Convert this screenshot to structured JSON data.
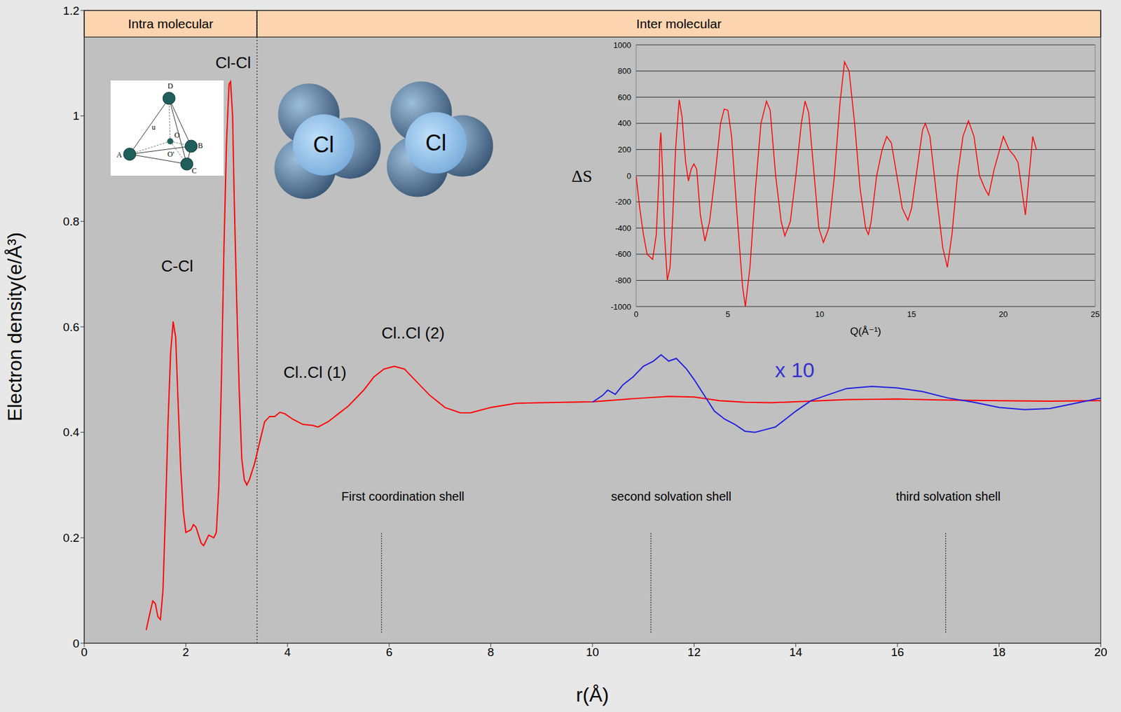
{
  "chart_data": [
    {
      "type": "line",
      "x_label": "r(Å)",
      "y_label": "Electron density(e/Å³)",
      "xlim": [
        0,
        20
      ],
      "ylim": [
        0,
        1.2
      ],
      "xticks": [
        0,
        2,
        4,
        6,
        8,
        10,
        12,
        14,
        16,
        18,
        20
      ],
      "yticks": [
        0,
        0.2,
        0.4,
        0.6,
        0.8,
        1,
        1.2
      ],
      "grid": false,
      "series": [
        {
          "color": "#ff0000",
          "x": [
            1.22,
            1.3,
            1.35,
            1.4,
            1.45,
            1.5,
            1.55,
            1.6,
            1.65,
            1.7,
            1.75,
            1.8,
            1.85,
            1.9,
            1.95,
            2.0,
            2.1,
            2.15,
            2.2,
            2.3,
            2.35,
            2.45,
            2.55,
            2.6,
            2.65,
            2.7,
            2.75,
            2.8,
            2.85,
            2.88,
            2.92,
            2.95,
            3.0,
            3.05,
            3.1,
            3.15,
            3.2,
            3.25,
            3.35,
            3.45,
            3.55,
            3.65,
            3.75,
            3.85,
            3.95,
            4.1,
            4.3,
            4.5,
            4.6,
            4.8,
            5.0,
            5.2,
            5.5,
            5.7,
            5.9,
            6.1,
            6.3,
            6.5,
            6.8,
            7.1,
            7.4,
            7.6,
            8.0,
            8.5,
            9.0,
            10.0,
            11.0,
            11.5,
            12.0,
            12.5,
            13.0,
            13.5,
            14.0,
            15.0,
            16.0,
            17.0,
            18.0,
            19.0,
            20.0
          ],
          "values": [
            0.025,
            0.06,
            0.08,
            0.075,
            0.05,
            0.045,
            0.1,
            0.25,
            0.42,
            0.55,
            0.61,
            0.58,
            0.45,
            0.33,
            0.25,
            0.21,
            0.215,
            0.225,
            0.22,
            0.19,
            0.185,
            0.205,
            0.2,
            0.21,
            0.3,
            0.5,
            0.75,
            0.95,
            1.06,
            1.065,
            1.0,
            0.85,
            0.65,
            0.48,
            0.35,
            0.31,
            0.3,
            0.31,
            0.34,
            0.38,
            0.42,
            0.43,
            0.43,
            0.438,
            0.435,
            0.425,
            0.415,
            0.413,
            0.41,
            0.42,
            0.435,
            0.45,
            0.48,
            0.505,
            0.52,
            0.525,
            0.52,
            0.5,
            0.47,
            0.447,
            0.437,
            0.437,
            0.447,
            0.455,
            0.456,
            0.458,
            0.465,
            0.468,
            0.467,
            0.46,
            0.457,
            0.456,
            0.458,
            0.462,
            0.463,
            0.461,
            0.46,
            0.459,
            0.46
          ]
        },
        {
          "color": "#1f1fe0",
          "x": [
            10.0,
            10.2,
            10.3,
            10.45,
            10.6,
            10.8,
            11.0,
            11.2,
            11.35,
            11.5,
            11.65,
            11.85,
            12.0,
            12.2,
            12.4,
            12.6,
            12.8,
            13.0,
            13.2,
            13.4,
            13.6,
            13.8,
            14.0,
            14.3,
            14.6,
            15.0,
            15.5,
            16.0,
            16.5,
            17.0,
            17.5,
            18.0,
            18.5,
            19.0,
            19.5,
            20.0
          ],
          "values": [
            0.457,
            0.47,
            0.48,
            0.472,
            0.49,
            0.505,
            0.525,
            0.535,
            0.547,
            0.535,
            0.54,
            0.52,
            0.5,
            0.47,
            0.44,
            0.425,
            0.415,
            0.402,
            0.4,
            0.405,
            0.41,
            0.425,
            0.44,
            0.46,
            0.47,
            0.483,
            0.487,
            0.484,
            0.477,
            0.465,
            0.457,
            0.447,
            0.443,
            0.445,
            0.455,
            0.465
          ]
        }
      ],
      "regions": [
        {
          "text": "Intra molecular",
          "x": [
            0,
            3.4
          ],
          "color": "#fcd5b0"
        },
        {
          "text": "Inter molecular",
          "x": [
            3.4,
            20
          ],
          "color": "#fcd5b0"
        }
      ],
      "annotations": [
        {
          "text": "Cl-Cl",
          "x": 2.93,
          "y": 1.101
        },
        {
          "text": "C-Cl",
          "x": 1.83,
          "y": 0.715
        },
        {
          "text": "Cl..Cl (1)",
          "x": 4.54,
          "y": 0.514
        },
        {
          "text": "Cl..Cl (2)",
          "x": 6.47,
          "y": 0.588
        },
        {
          "text": "x 10",
          "x": 13.98,
          "y": 0.519,
          "color": "#3333cc"
        }
      ],
      "shells": [
        {
          "text": "First coordination shell",
          "x": 6.27,
          "y": 0.278,
          "line_x": 5.85,
          "line_y": [
            0.02,
            0.21
          ]
        },
        {
          "text": "second solvation shell",
          "x": 11.55,
          "y": 0.278,
          "line_x": 11.15,
          "line_y": [
            0.02,
            0.21
          ]
        },
        {
          "text": "third solvation shell",
          "x": 17.0,
          "y": 0.278,
          "line_x": 16.95,
          "line_y": [
            0.02,
            0.21
          ]
        }
      ],
      "molecules": [
        {
          "text": "Cl",
          "x": 4.71,
          "y": 0.945
        },
        {
          "text": "Cl",
          "x": 6.92,
          "y": 0.949
        }
      ],
      "tetrahedron_labels": [
        "D",
        "A",
        "B",
        "C",
        "O",
        "O'",
        "u"
      ]
    },
    {
      "type": "line",
      "x_label": "Q(Å⁻¹)",
      "y_label": "ΔS",
      "xlim": [
        0,
        25
      ],
      "ylim": [
        -1000,
        1000
      ],
      "xticks": [
        0,
        5,
        10,
        15,
        20,
        25
      ],
      "yticks": [
        -1000,
        -800,
        -600,
        -400,
        -200,
        0,
        200,
        400,
        600,
        800,
        1000
      ],
      "grid": true,
      "series": [
        {
          "color": "#ff0000",
          "x": [
            0,
            0.2,
            0.4,
            0.6,
            0.9,
            1.1,
            1.25,
            1.3,
            1.35,
            1.45,
            1.55,
            1.7,
            1.85,
            2.0,
            2.15,
            2.3,
            2.35,
            2.5,
            2.7,
            2.85,
            3.0,
            3.15,
            3.3,
            3.5,
            3.75,
            4.0,
            4.3,
            4.6,
            4.8,
            5.0,
            5.2,
            5.5,
            5.8,
            5.95,
            6.2,
            6.5,
            6.8,
            7.1,
            7.3,
            7.6,
            7.9,
            8.1,
            8.4,
            8.7,
            9.0,
            9.2,
            9.4,
            9.7,
            9.95,
            10.2,
            10.5,
            10.8,
            11.1,
            11.35,
            11.6,
            11.9,
            12.2,
            12.5,
            12.65,
            12.8,
            13.1,
            13.4,
            13.65,
            13.9,
            14.2,
            14.5,
            14.8,
            15.0,
            15.3,
            15.6,
            15.75,
            16.0,
            16.4,
            16.7,
            16.95,
            17.2,
            17.5,
            17.8,
            18.1,
            18.4,
            18.7,
            19.0,
            19.2,
            19.5,
            19.8,
            20.0,
            20.3,
            20.6,
            20.8,
            21.0,
            21.2,
            21.4,
            21.6,
            21.7,
            21.8
          ],
          "values": [
            0,
            -250,
            -450,
            -600,
            -640,
            -450,
            0,
            250,
            330,
            0,
            -450,
            -800,
            -700,
            -300,
            200,
            500,
            580,
            450,
            100,
            -40,
            50,
            90,
            50,
            -300,
            -500,
            -350,
            0,
            400,
            510,
            500,
            300,
            -300,
            -850,
            -1000,
            -700,
            -100,
            400,
            570,
            500,
            0,
            -350,
            -460,
            -350,
            0,
            400,
            570,
            480,
            0,
            -400,
            -510,
            -400,
            0,
            550,
            870,
            800,
            400,
            -100,
            -400,
            -450,
            -350,
            0,
            200,
            300,
            250,
            0,
            -250,
            -340,
            -250,
            50,
            350,
            400,
            300,
            -200,
            -550,
            -700,
            -450,
            0,
            300,
            420,
            300,
            0,
            -100,
            -150,
            50,
            200,
            300,
            200,
            150,
            100,
            -100,
            -300,
            0,
            300,
            250,
            200
          ]
        }
      ]
    }
  ]
}
